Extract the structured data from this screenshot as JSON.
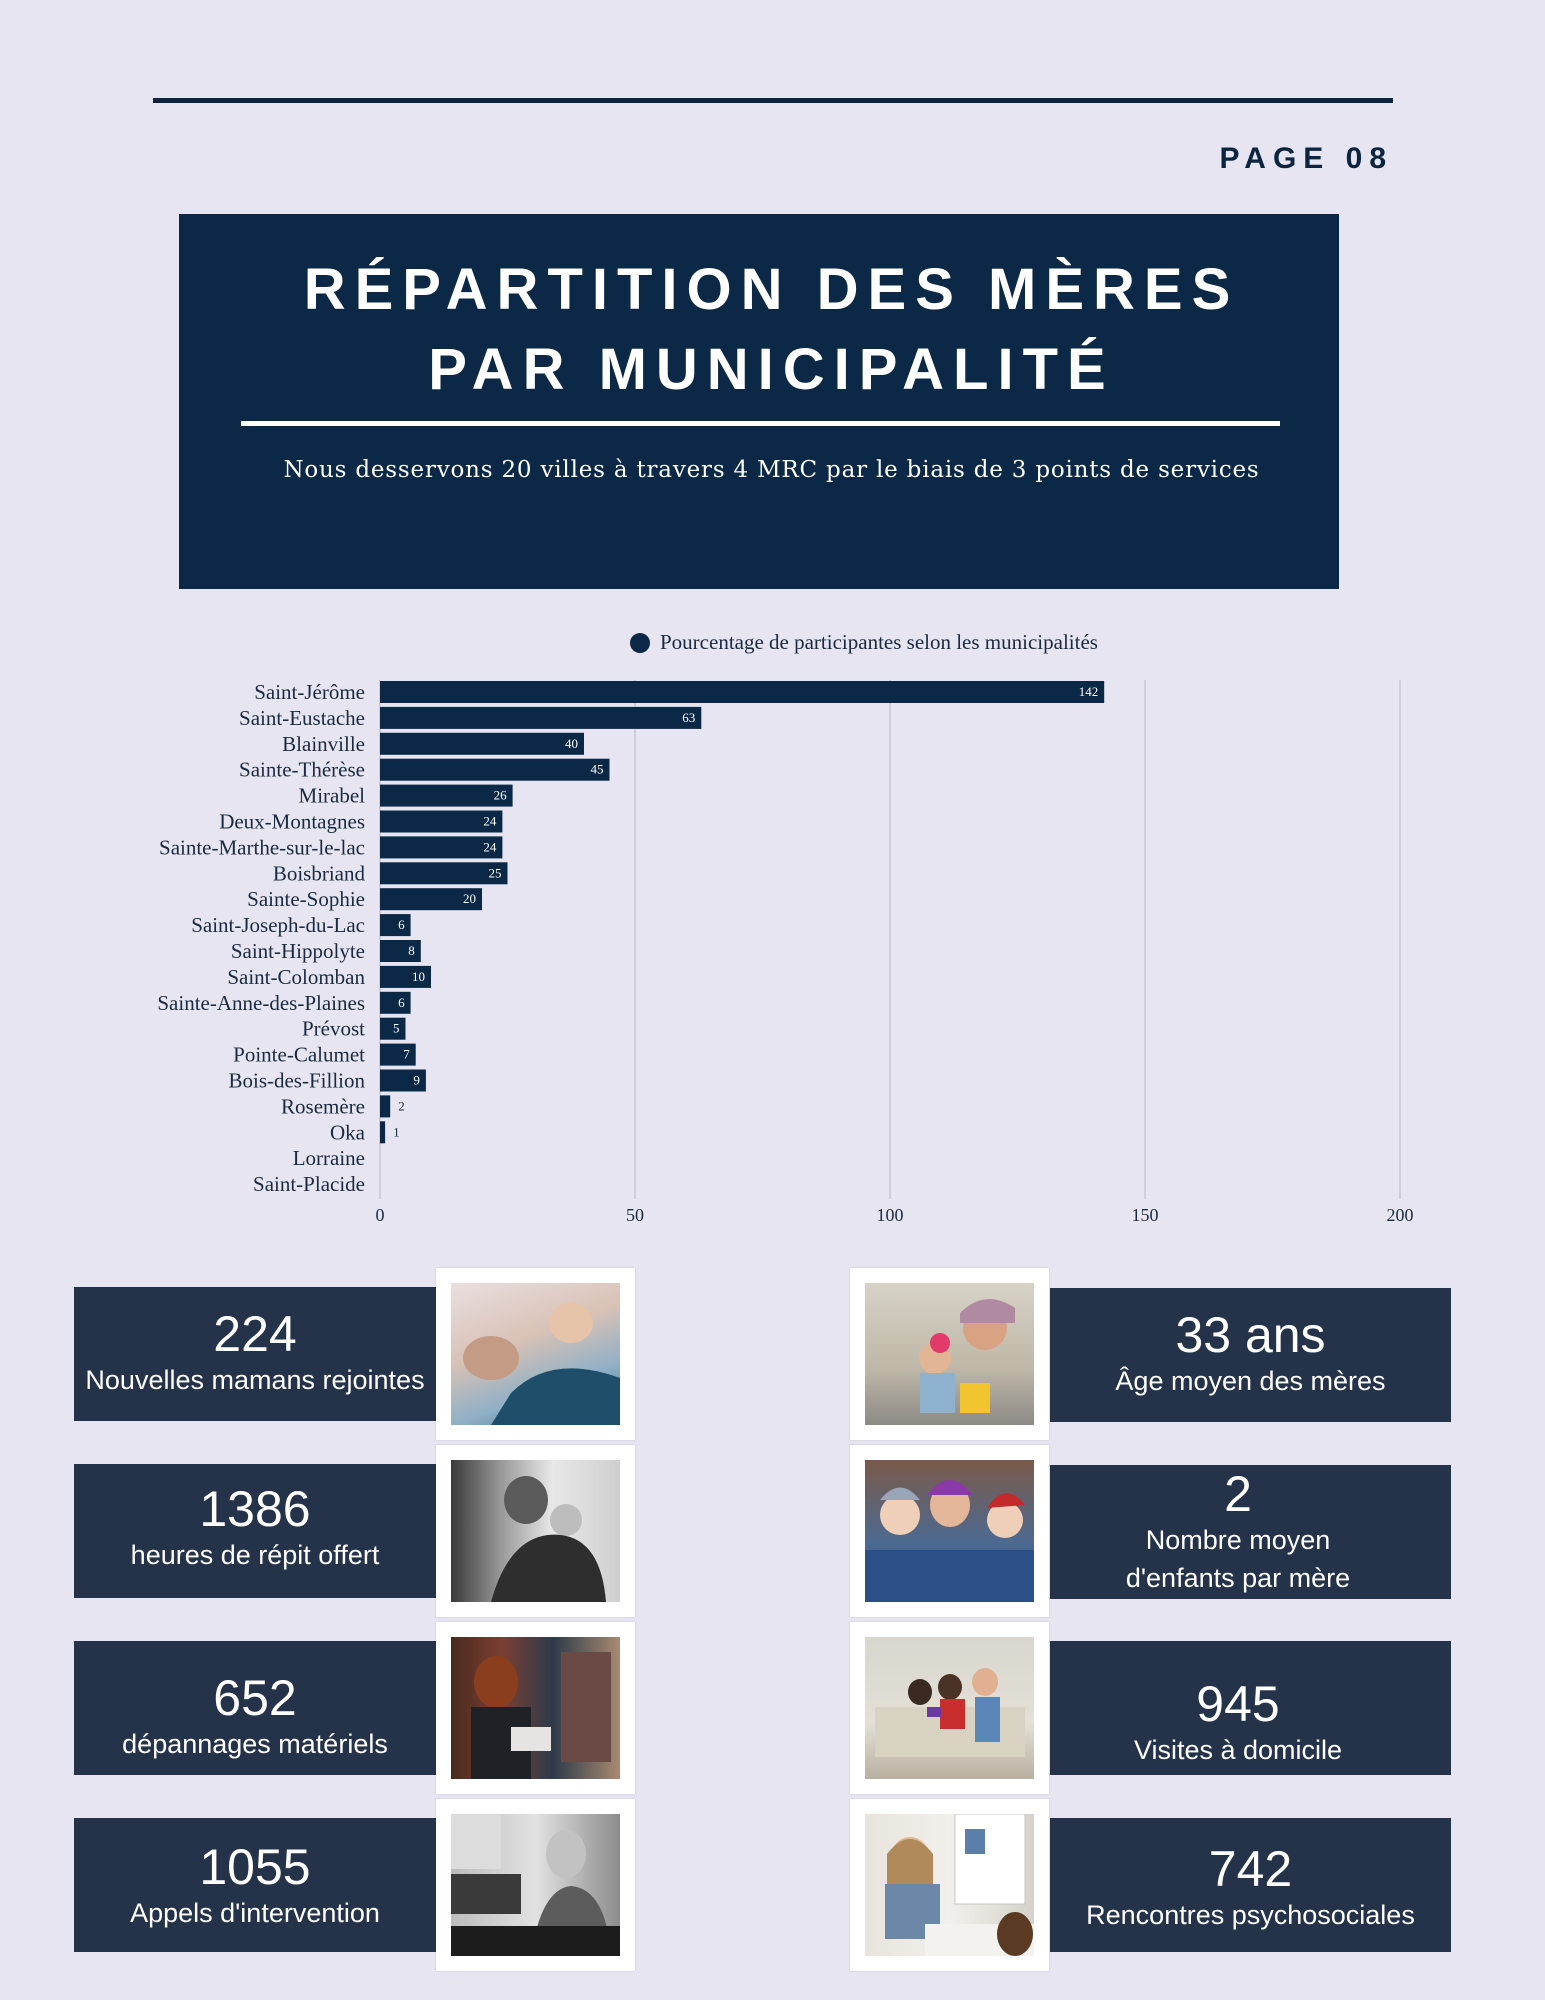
{
  "page": {
    "label": "PAGE 08"
  },
  "banner": {
    "title_line1": "RÉPARTITION DES MÈRES",
    "title_line2": "PAR MUNICIPALITÉ",
    "subtitle": "Nous desservons 20 villes à travers 4 MRC par le biais de 3 points de services"
  },
  "chart_data": {
    "type": "bar",
    "orientation": "horizontal",
    "legend": "Pourcentage de participantes selon les municipalités",
    "legend_position": "top-center",
    "categories": [
      "Saint-Jérôme",
      "Saint-Eustache",
      "Blainville",
      "Sainte-Thérèse",
      "Mirabel",
      "Deux-Montagnes",
      "Sainte-Marthe-sur-le-lac",
      "Boisbriand",
      "Sainte-Sophie",
      "Saint-Joseph-du-Lac",
      "Saint-Hippolyte",
      "Saint-Colomban",
      "Sainte-Anne-des-Plaines",
      "Prévost",
      "Pointe-Calumet",
      "Bois-des-Fillion",
      "Rosemère",
      "Oka",
      "Lorraine",
      "Saint-Placide"
    ],
    "values": [
      142,
      63,
      40,
      45,
      26,
      24,
      24,
      25,
      20,
      6,
      8,
      10,
      6,
      5,
      7,
      9,
      2,
      1,
      null,
      null
    ],
    "xlim": [
      0,
      200
    ],
    "xticks": [
      "0",
      "50",
      "100",
      "150",
      "200"
    ],
    "grid": true,
    "color": "#0b2846"
  },
  "stats": [
    {
      "value": "224",
      "label": "Nouvelles mamans rejointes"
    },
    {
      "value": "1386",
      "label": "heures de répit offert"
    },
    {
      "value": "652",
      "label": "dépannages matériels"
    },
    {
      "value": "1055",
      "label": "Appels d'intervention"
    },
    {
      "value": "33 ans",
      "label": "Âge moyen des mères"
    },
    {
      "value": "2",
      "label": "Nombre moyen",
      "label2": "d'enfants par mère"
    },
    {
      "value": "945",
      "label": "Visites à domicile"
    },
    {
      "value": "742",
      "label": "Rencontres psychosociales"
    }
  ],
  "colors": {
    "background": "#e7e5f1",
    "navy": "#0b2846",
    "stat_box": "#243349"
  }
}
